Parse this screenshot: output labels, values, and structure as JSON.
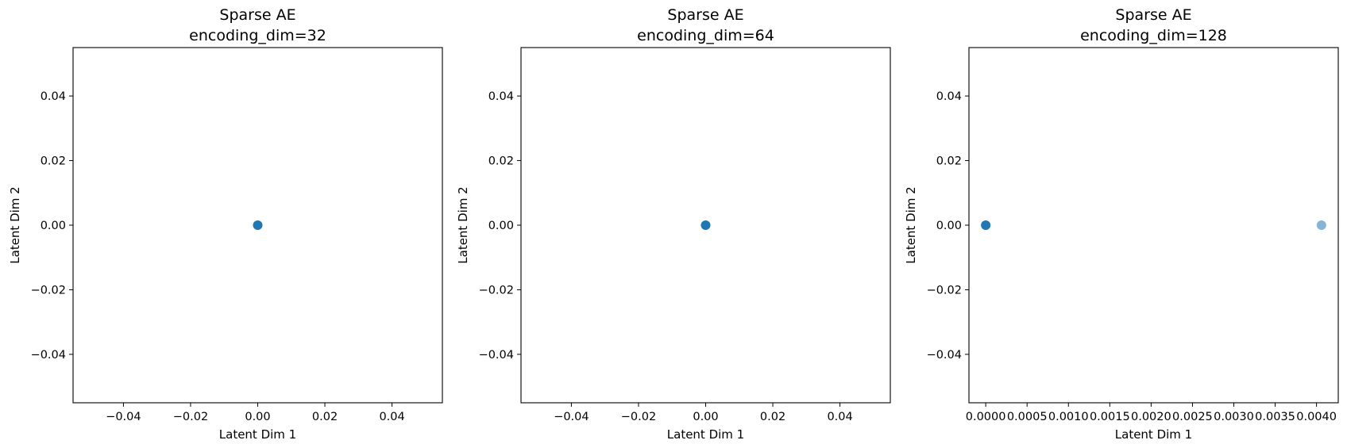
{
  "chart_data": [
    {
      "type": "scatter",
      "title": "Sparse AE",
      "subtitle": "encoding_dim=32",
      "xlabel": "Latent Dim 1",
      "ylabel": "Latent Dim 2",
      "xlim": [
        -0.055,
        0.055
      ],
      "ylim": [
        -0.055,
        0.055
      ],
      "xticks": [
        -0.04,
        -0.02,
        0.0,
        0.02,
        0.04
      ],
      "xtick_labels": [
        "−0.04",
        "−0.02",
        "0.00",
        "0.02",
        "0.04"
      ],
      "yticks": [
        -0.04,
        -0.02,
        0.0,
        0.02,
        0.04
      ],
      "ytick_labels": [
        "−0.04",
        "−0.02",
        "0.00",
        "0.02",
        "0.04"
      ],
      "grid": false,
      "color": "#1f77b4",
      "points": [
        {
          "x": 0.0,
          "y": 0.0,
          "alpha": 1.0
        }
      ]
    },
    {
      "type": "scatter",
      "title": "Sparse AE",
      "subtitle": "encoding_dim=64",
      "xlabel": "Latent Dim 1",
      "ylabel": "Latent Dim 2",
      "xlim": [
        -0.055,
        0.055
      ],
      "ylim": [
        -0.055,
        0.055
      ],
      "xticks": [
        -0.04,
        -0.02,
        0.0,
        0.02,
        0.04
      ],
      "xtick_labels": [
        "−0.04",
        "−0.02",
        "0.00",
        "0.02",
        "0.04"
      ],
      "yticks": [
        -0.04,
        -0.02,
        0.0,
        0.02,
        0.04
      ],
      "ytick_labels": [
        "−0.04",
        "−0.02",
        "0.00",
        "0.02",
        "0.04"
      ],
      "grid": false,
      "color": "#1f77b4",
      "points": [
        {
          "x": 0.0,
          "y": 0.0,
          "alpha": 1.0
        }
      ]
    },
    {
      "type": "scatter",
      "title": "Sparse AE",
      "subtitle": "encoding_dim=128",
      "xlabel": "Latent Dim 1",
      "ylabel": "Latent Dim 2",
      "xlim": [
        -0.000203,
        0.004263
      ],
      "ylim": [
        -0.055,
        0.055
      ],
      "xticks": [
        0.0,
        0.0005,
        0.001,
        0.0015,
        0.002,
        0.0025,
        0.003,
        0.0035,
        0.004
      ],
      "xtick_labels": [
        "0.0000",
        "0.0005",
        "0.0010",
        "0.0015",
        "0.0020",
        "0.0025",
        "0.0030",
        "0.0035",
        "0.0040"
      ],
      "yticks": [
        -0.04,
        -0.02,
        0.0,
        0.02,
        0.04
      ],
      "ytick_labels": [
        "−0.04",
        "−0.02",
        "0.00",
        "0.02",
        "0.04"
      ],
      "grid": false,
      "color": "#1f77b4",
      "points": [
        {
          "x": 0.0,
          "y": 0.0,
          "alpha": 1.0
        },
        {
          "x": 0.00406,
          "y": 0.0,
          "alpha": 0.55
        }
      ]
    }
  ]
}
